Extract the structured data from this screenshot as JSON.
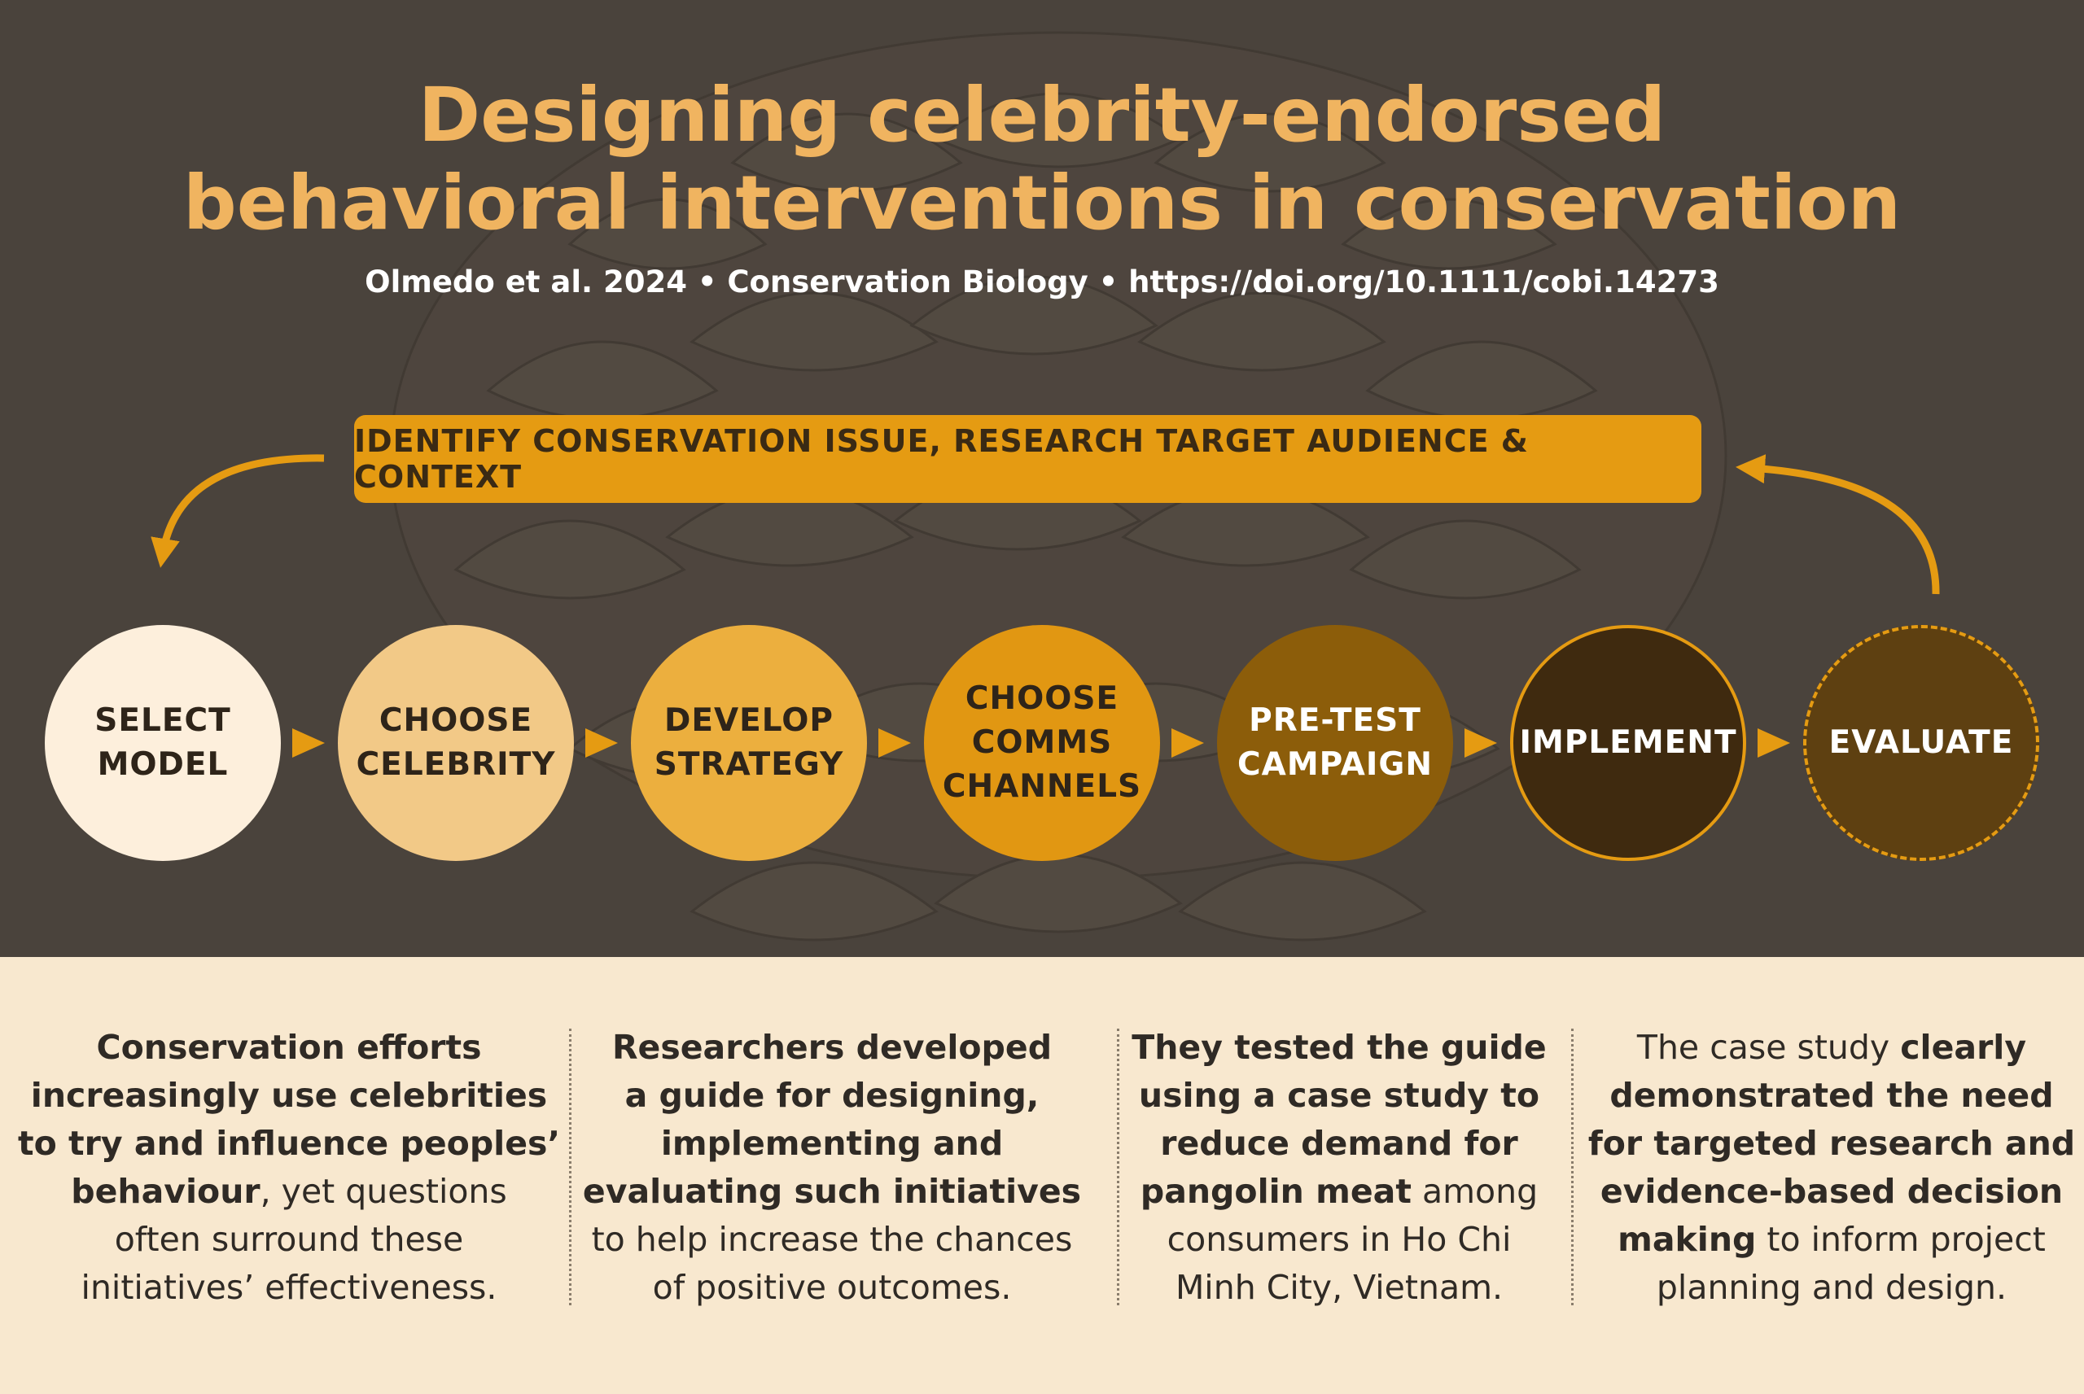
{
  "title_line1": "Designing celebrity-endorsed",
  "title_line2": "behavioral interventions in conservation",
  "citation": "Olmedo et al. 2024 • Conservation Biology • https://doi.org/10.1111/cobi.14273",
  "banner": "IDENTIFY CONSERVATION ISSUE, RESEARCH TARGET AUDIENCE & CONTEXT",
  "steps": [
    {
      "label": "SELECT\nMODEL",
      "fill": "#fdefdc",
      "text_color": "#2e2419"
    },
    {
      "label": "CHOOSE\nCELEBRITY",
      "fill": "#f2c987",
      "text_color": "#2e2419"
    },
    {
      "label": "DEVELOP\nSTRATEGY",
      "fill": "#ecaf3e",
      "text_color": "#2e2419"
    },
    {
      "label": "CHOOSE\nCOMMS\nCHANNELS",
      "fill": "#e19712",
      "text_color": "#2e2419"
    },
    {
      "label": "PRE-TEST\nCAMPAIGN",
      "fill": "#8c5d0a",
      "text_color": "#ffffff"
    },
    {
      "label": "IMPLEMENT",
      "fill": "#3f2a0f",
      "text_color": "#ffffff"
    },
    {
      "label": "EVALUATE",
      "fill": "#5e4011",
      "text_color": "#ffffff"
    }
  ],
  "colors": {
    "accent": "#e59b12",
    "title": "#f0b460",
    "dark_background": "#4a433c",
    "light_background": "#f8e8cf"
  },
  "columns": [
    [
      {
        "b": true,
        "t": "Conservation efforts"
      },
      {
        "br": true
      },
      {
        "b": true,
        "t": "increasingly use celebrities"
      },
      {
        "br": true
      },
      {
        "b": true,
        "t": "to try and influence peoples’"
      },
      {
        "br": true
      },
      {
        "b": true,
        "t": "behaviour"
      },
      {
        "b": false,
        "t": ", yet questions"
      },
      {
        "br": true
      },
      {
        "b": false,
        "t": "often surround these"
      },
      {
        "br": true
      },
      {
        "b": false,
        "t": "initiatives’ effectiveness."
      }
    ],
    [
      {
        "b": true,
        "t": "Researchers developed"
      },
      {
        "br": true
      },
      {
        "b": true,
        "t": "a guide for designing,"
      },
      {
        "br": true
      },
      {
        "b": true,
        "t": "implementing and"
      },
      {
        "br": true
      },
      {
        "b": true,
        "t": "evaluating such initiatives"
      },
      {
        "br": true
      },
      {
        "b": false,
        "t": "to help increase the chances"
      },
      {
        "br": true
      },
      {
        "b": false,
        "t": "of positive outcomes."
      }
    ],
    [
      {
        "b": true,
        "t": "They tested the guide"
      },
      {
        "br": true
      },
      {
        "b": true,
        "t": "using a case study to"
      },
      {
        "br": true
      },
      {
        "b": true,
        "t": "reduce demand for"
      },
      {
        "br": true
      },
      {
        "b": true,
        "t": "pangolin meat"
      },
      {
        "b": false,
        "t": " among"
      },
      {
        "br": true
      },
      {
        "b": false,
        "t": "consumers in Ho Chi"
      },
      {
        "br": true
      },
      {
        "b": false,
        "t": "Minh City, Vietnam."
      }
    ],
    [
      {
        "b": false,
        "t": "The case study "
      },
      {
        "b": true,
        "t": "clearly"
      },
      {
        "br": true
      },
      {
        "b": true,
        "t": "demonstrated the need"
      },
      {
        "br": true
      },
      {
        "b": true,
        "t": "for targeted research and"
      },
      {
        "br": true
      },
      {
        "b": true,
        "t": "evidence-based decision"
      },
      {
        "br": true
      },
      {
        "b": true,
        "t": "making"
      },
      {
        "b": false,
        "t": " to inform project"
      },
      {
        "br": true
      },
      {
        "b": false,
        "t": "planning and design."
      }
    ]
  ]
}
